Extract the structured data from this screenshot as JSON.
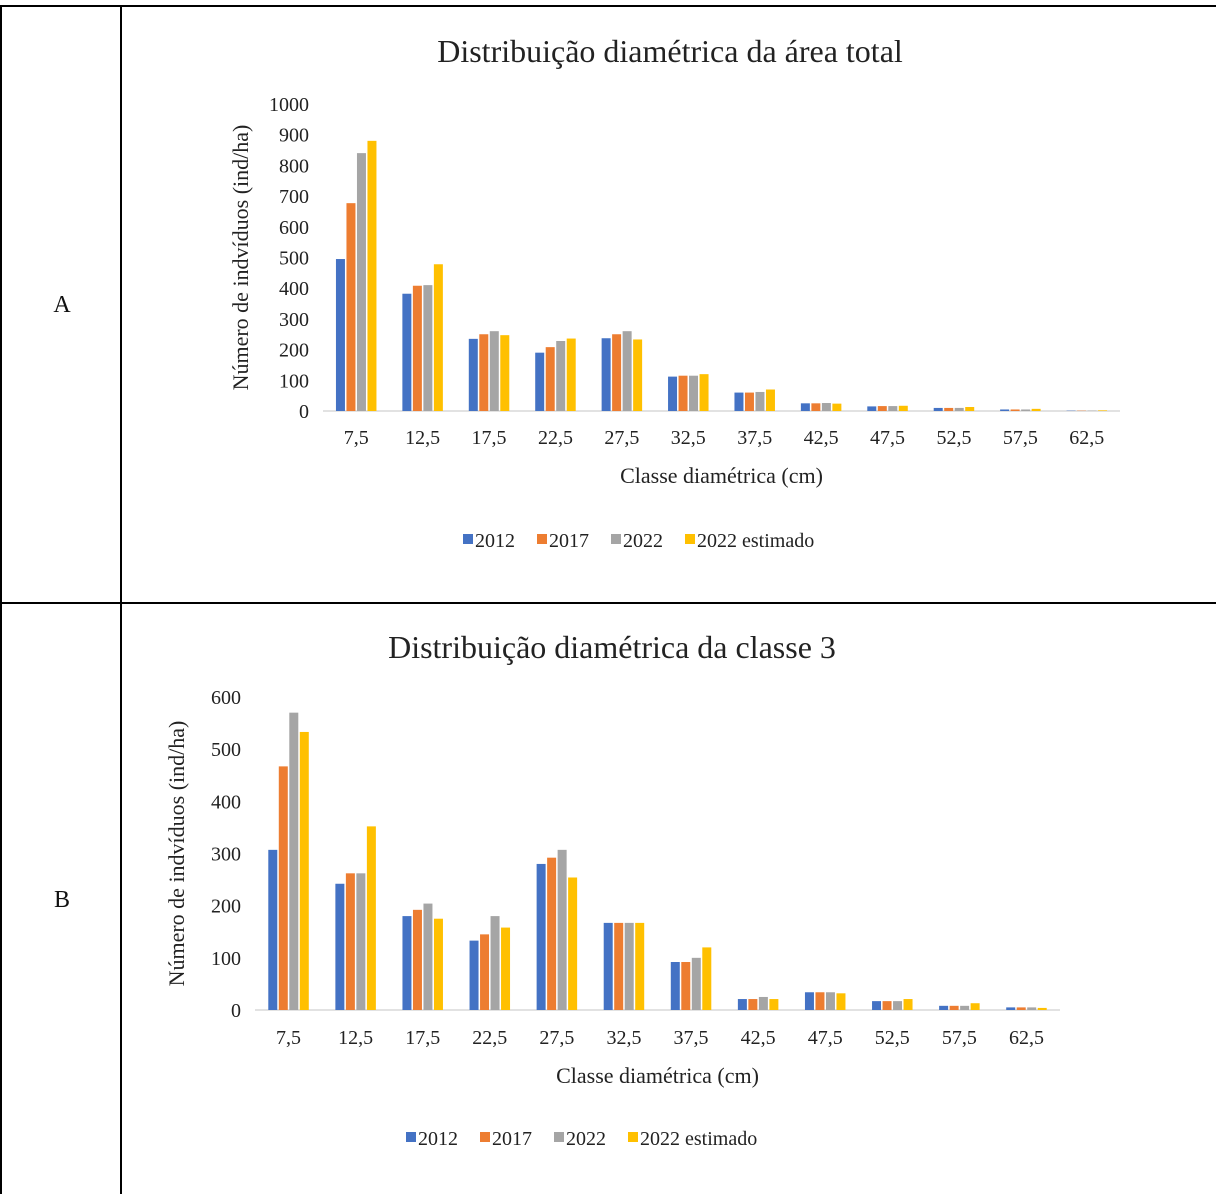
{
  "rows": [
    {
      "label": "A"
    },
    {
      "label": "B"
    }
  ],
  "colors": {
    "2012": "#4472C4",
    "2017": "#ED7D31",
    "2022": "#A5A5A5",
    "2022 estimado": "#FFC000",
    "axis": "#D9D9D9"
  },
  "chart_data": [
    {
      "type": "bar",
      "title": "Distribuição diamétrica da área total",
      "xlabel": "Classe diamétrica (cm)",
      "ylabel": "Número de indvíduos (ind/ha)",
      "ylim": [
        0,
        1000
      ],
      "yticks": [
        0,
        100,
        200,
        300,
        400,
        500,
        600,
        700,
        800,
        900,
        1000
      ],
      "grid": false,
      "legend": "bottom",
      "categories": [
        "7,5",
        "12,5",
        "17,5",
        "22,5",
        "27,5",
        "32,5",
        "37,5",
        "42,5",
        "47,5",
        "52,5",
        "57,5",
        "62,5"
      ],
      "series": [
        {
          "name": "2012",
          "values": [
            495,
            382,
            235,
            190,
            237,
            112,
            60,
            25,
            15,
            10,
            5,
            1
          ]
        },
        {
          "name": "2017",
          "values": [
            677,
            408,
            250,
            208,
            250,
            115,
            60,
            25,
            16,
            10,
            5,
            1
          ]
        },
        {
          "name": "2022",
          "values": [
            840,
            410,
            260,
            228,
            260,
            115,
            62,
            26,
            16,
            10,
            5,
            1
          ]
        },
        {
          "name": "2022 estimado",
          "values": [
            880,
            478,
            247,
            236,
            233,
            120,
            70,
            24,
            17,
            13,
            7,
            2
          ]
        }
      ]
    },
    {
      "type": "bar",
      "title": "Distribuição diamétrica da classe 3",
      "xlabel": "Classe diamétrica (cm)",
      "ylabel": "Número de indvíduos (ind/ha)",
      "ylim": [
        0,
        600
      ],
      "yticks": [
        0,
        100,
        200,
        300,
        400,
        500,
        600
      ],
      "grid": false,
      "legend": "bottom",
      "categories": [
        "7,5",
        "12,5",
        "17,5",
        "22,5",
        "27,5",
        "32,5",
        "37,5",
        "42,5",
        "47,5",
        "52,5",
        "57,5",
        "62,5"
      ],
      "series": [
        {
          "name": "2012",
          "values": [
            307,
            242,
            180,
            133,
            280,
            167,
            92,
            21,
            34,
            17,
            8,
            5
          ]
        },
        {
          "name": "2017",
          "values": [
            467,
            262,
            192,
            145,
            292,
            167,
            92,
            21,
            34,
            17,
            8,
            5
          ]
        },
        {
          "name": "2022",
          "values": [
            570,
            262,
            204,
            180,
            307,
            167,
            100,
            25,
            34,
            17,
            8,
            5
          ]
        },
        {
          "name": "2022 estimado",
          "values": [
            533,
            352,
            175,
            158,
            254,
            167,
            120,
            21,
            32,
            21,
            13,
            4
          ]
        }
      ]
    }
  ]
}
